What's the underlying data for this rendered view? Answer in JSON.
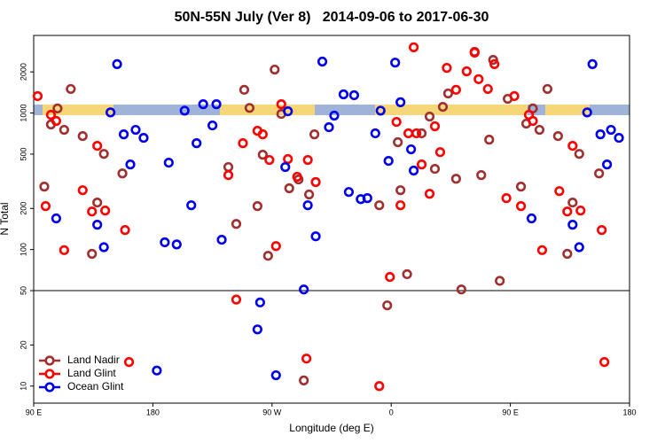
{
  "chart_data": {
    "type": "scatter",
    "title": "50N-55N July (Ver 8)   2014-09-06 to 2017-06-30",
    "x_label": "Longitude (deg E)",
    "y_label": "N Total",
    "xlim": [
      90,
      540
    ],
    "ylim": [
      7.5,
      3700
    ],
    "log_y": true,
    "xticks": [
      {
        "value": 90,
        "label": "90 E"
      },
      180,
      {
        "value": 270,
        "label": "90 W"
      },
      {
        "value": 360,
        "label": "0"
      },
      {
        "value": 450,
        "label": "90 E"
      },
      {
        "value": 540,
        "label": "180"
      }
    ],
    "yticks": [
      10,
      20,
      50,
      100,
      200,
      500,
      1000,
      2000
    ],
    "hline": 50,
    "legend": "bottomleft",
    "series": [
      {
        "name": "Land Nadir",
        "color": "#a0302f",
        "x": [
          98,
          103,
          108,
          113,
          118,
          127,
          134,
          138,
          143,
          157,
          237,
          243,
          249,
          253,
          259,
          263,
          267,
          272,
          277,
          283,
          290,
          294,
          298,
          302,
          351,
          357,
          365,
          367,
          372,
          383,
          389,
          393,
          399,
          403,
          409,
          413,
          423,
          428,
          434,
          437,
          442,
          448,
          458,
          462,
          467,
          472,
          478,
          486,
          493,
          497,
          502,
          517
        ],
        "y": [
          289,
          824,
          1080,
          753,
          1500,
          678,
          93,
          221,
          502,
          361,
          402,
          154,
          1480,
          1090,
          208,
          495,
          90,
          2080,
          985,
          281,
          326,
          11,
          253,
          698,
          211,
          39,
          611,
          272,
          66,
          710,
          942,
          390,
          1110,
          1390,
          330,
          51,
          2810,
          351,
          638,
          2450,
          59,
          1270,
          289,
          836,
          1080,
          753,
          1500,
          678,
          93,
          221,
          502,
          361
        ]
      },
      {
        "name": "Land Glint",
        "color": "#ff0000",
        "x": [
          93,
          99,
          103,
          107,
          113,
          127,
          134,
          138,
          144,
          159,
          162,
          237,
          243,
          248,
          259,
          263,
          268,
          273,
          277,
          282,
          289,
          296,
          297,
          303,
          351,
          359,
          364,
          373,
          367,
          377,
          379,
          383,
          389,
          393,
          397,
          402,
          409,
          417,
          423,
          426,
          433,
          438,
          447,
          453,
          458,
          464,
          467,
          474,
          487,
          493,
          497,
          503,
          519,
          521
        ],
        "y": [
          1330,
          208,
          970,
          875,
          99,
          272,
          190,
          575,
          193,
          139,
          15,
          351,
          43,
          601,
          741,
          698,
          453,
          106,
          1160,
          460,
          341,
          15.9,
          453,
          312,
          10,
          63,
          861,
          710,
          211,
          3030,
          710,
          420,
          256,
          800,
          517,
          2140,
          1480,
          2020,
          2770,
          1770,
          1500,
          2280,
          238,
          1330,
          208,
          970,
          875,
          99,
          268,
          190,
          575,
          193,
          139,
          15
        ]
      },
      {
        "name": "Ocean Glint",
        "color": "#0000ee",
        "x": [
          107,
          138,
          143,
          148,
          153,
          158,
          163,
          167,
          173,
          183,
          189,
          192,
          198,
          204,
          209,
          213,
          218,
          225,
          228,
          232,
          259,
          261,
          273,
          280,
          282,
          294,
          297,
          303,
          308,
          313,
          317,
          324,
          328,
          332,
          337,
          342,
          348,
          352,
          358,
          363,
          367,
          375,
          377,
          466,
          497,
          502,
          508,
          512,
          518,
          523,
          526,
          532
        ],
        "y": [
          169,
          152,
          104,
          1010,
          2280,
          698,
          420,
          753,
          658,
          13,
          113,
          433,
          109,
          1040,
          211,
          601,
          1160,
          811,
          1160,
          118,
          26,
          41,
          12,
          402,
          1030,
          51,
          211,
          125,
          2380,
          787,
          957,
          1370,
          264,
          1350,
          234,
          238,
          710,
          1040,
          446,
          2340,
          1200,
          542,
          379,
          169,
          152,
          104,
          1010,
          2280,
          698,
          420,
          753,
          658
        ]
      }
    ]
  }
}
